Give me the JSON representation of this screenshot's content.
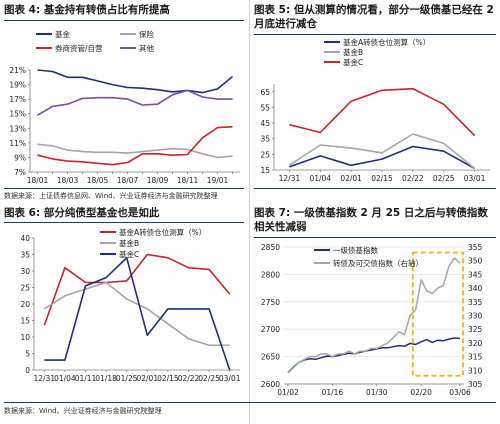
{
  "panels": [
    {
      "title": "图表 4:  基金持有转债占比有所提高",
      "source": "数据来源：上证债券信息网、Wind、兴业证券经济与金融研究院整理"
    },
    {
      "title": "图表 5:  但从测算的情况看，部分一级债基已经在 2 月底进行减仓",
      "source": ""
    },
    {
      "title": "图表 6:  部分纯债型基金也是如此",
      "source": "数据来源：Wind、兴业证券经济与金融研究院整理"
    },
    {
      "title": "图表 7:  一级债基指数 2 月 25 日之后与转债指数相关性减弱",
      "source": ""
    }
  ],
  "colors": {
    "navy": "#1f2f7a",
    "gray": "#a6a6a6",
    "red": "#c8262b",
    "purple": "#7b4fa0",
    "gold": "#f0b323",
    "rule": "#1f3d6e"
  },
  "chart_data": [
    {
      "type": "line",
      "x": [
        "18/01",
        "18/02",
        "18/03",
        "18/04",
        "18/05",
        "18/06",
        "18/07",
        "18/08",
        "18/09",
        "18/10",
        "18/11",
        "18/12",
        "19/01",
        "19/02"
      ],
      "xticks": [
        "18/01",
        "18/03",
        "18/05",
        "18/07",
        "18/09",
        "18/11",
        "19/01"
      ],
      "ylim": [
        7,
        21
      ],
      "yticks": [
        "7%",
        "9%",
        "11%",
        "13%",
        "15%",
        "17%",
        "19%",
        "21%"
      ],
      "series": [
        {
          "name": "基金",
          "color": "#1f2f7a",
          "values": [
            21.0,
            20.8,
            20.0,
            20.0,
            19.5,
            19.0,
            18.6,
            18.5,
            18.3,
            18.0,
            18.2,
            17.9,
            18.4,
            20.1
          ]
        },
        {
          "name": "保险",
          "color": "#a6a6a6",
          "values": [
            10.8,
            10.6,
            10.0,
            9.8,
            9.7,
            9.7,
            9.6,
            9.8,
            10.0,
            10.2,
            10.1,
            9.5,
            9.0,
            9.2
          ]
        },
        {
          "name": "券商资管/自营",
          "color": "#c8262b",
          "values": [
            9.3,
            8.8,
            8.5,
            8.4,
            8.2,
            8.0,
            8.3,
            9.5,
            9.5,
            9.3,
            9.4,
            11.7,
            13.1,
            13.2
          ]
        },
        {
          "name": "其他",
          "color": "#7b4fa0",
          "values": [
            14.8,
            16.0,
            16.3,
            17.1,
            17.2,
            17.2,
            17.0,
            16.2,
            16.3,
            17.6,
            18.2,
            17.3,
            17.0,
            17.0
          ]
        }
      ]
    },
    {
      "type": "line",
      "x": [
        "12/31",
        "01/04",
        "02/01",
        "02/15",
        "02/22",
        "02/25",
        "03/01"
      ],
      "ylim": [
        15,
        70
      ],
      "yticks": [
        15,
        25,
        35,
        45,
        55,
        65
      ],
      "series": [
        {
          "name": "基金A转债仓位测算（%）",
          "color": "#1f2f7a",
          "values": [
            17,
            24,
            18,
            22,
            30,
            27,
            16
          ]
        },
        {
          "name": "基金B",
          "color": "#a6a6a6",
          "values": [
            18,
            31,
            29,
            26,
            38,
            32,
            16
          ]
        },
        {
          "name": "基金C",
          "color": "#c8262b",
          "values": [
            44,
            39,
            59,
            66,
            67,
            57,
            37
          ]
        }
      ]
    },
    {
      "type": "line",
      "x": [
        "12/31",
        "01/04",
        "01/11",
        "01/18",
        "01/25",
        "02/01",
        "02/15",
        "02/22",
        "02/25",
        "03/01"
      ],
      "xticks": [
        "12/31",
        "01/04",
        "01/11",
        "01/18",
        "01/25",
        "02/01",
        "02/15",
        "02/22",
        "02/25",
        "03/01"
      ],
      "ylim": [
        0,
        40
      ],
      "yticks": [
        0,
        5,
        10,
        15,
        20,
        25,
        30,
        35,
        40
      ],
      "series": [
        {
          "name": "基金A转债仓位测算（%）",
          "color": "#c8262b",
          "values": [
            13.5,
            31.0,
            26.5,
            26.5,
            27.0,
            35.0,
            34.0,
            31.0,
            30.5,
            23.0
          ]
        },
        {
          "name": "基金B",
          "color": "#a6a6a6",
          "values": [
            18.5,
            22.5,
            24.5,
            26.5,
            21.5,
            18.5,
            14.0,
            9.5,
            7.5,
            7.5
          ]
        },
        {
          "name": "基金C",
          "color": "#1f2f7a",
          "values": [
            3.0,
            3.0,
            25.5,
            28.0,
            34.0,
            10.5,
            18.5,
            18.5,
            18.5,
            0.0
          ]
        }
      ]
    },
    {
      "type": "line",
      "x": [
        "01/02",
        "01/16",
        "01/30",
        "02/20",
        "03/06"
      ],
      "ylim": [
        2600,
        2850
      ],
      "yticks": [
        2600,
        2650,
        2700,
        2750,
        2800,
        2850
      ],
      "y2lim": [
        305,
        355
      ],
      "y2ticks": [
        305,
        310,
        315,
        320,
        325,
        330,
        335,
        340,
        345,
        350,
        355
      ],
      "highlight": {
        "from": "02/20",
        "to": "03/06"
      },
      "series": [
        {
          "name": "一级债基指数",
          "color": "#1f2f7a",
          "axis": "left",
          "points": [
            [
              0,
              2621
            ],
            [
              2,
              2631
            ],
            [
              4,
              2640
            ],
            [
              6,
              2644
            ],
            [
              8,
              2646
            ],
            [
              10,
              2645
            ],
            [
              12,
              2648
            ],
            [
              14,
              2651
            ],
            [
              16,
              2650
            ],
            [
              18,
              2652
            ],
            [
              20,
              2654
            ],
            [
              22,
              2656
            ],
            [
              24,
              2655
            ],
            [
              26,
              2658
            ],
            [
              28,
              2660
            ],
            [
              30,
              2662
            ],
            [
              32,
              2664
            ],
            [
              34,
              2666
            ],
            [
              36,
              2666
            ],
            [
              38,
              2668
            ],
            [
              40,
              2670
            ],
            [
              42,
              2669
            ],
            [
              44,
              2674
            ],
            [
              46,
              2672
            ],
            [
              48,
              2677
            ],
            [
              50,
              2681
            ],
            [
              52,
              2676
            ],
            [
              54,
              2680
            ],
            [
              56,
              2679
            ],
            [
              58,
              2682
            ],
            [
              60,
              2684
            ],
            [
              62,
              2683
            ]
          ]
        },
        {
          "name": "转债及可交债指数（右轴）",
          "color": "#a6a6a6",
          "axis": "right",
          "points": [
            [
              0,
              309
            ],
            [
              2,
              311
            ],
            [
              4,
              313
            ],
            [
              6,
              314
            ],
            [
              8,
              315
            ],
            [
              10,
              315
            ],
            [
              12,
              316
            ],
            [
              14,
              316
            ],
            [
              16,
              315
            ],
            [
              18,
              316
            ],
            [
              20,
              316
            ],
            [
              22,
              317
            ],
            [
              24,
              316
            ],
            [
              26,
              317
            ],
            [
              28,
              317
            ],
            [
              30,
              318
            ],
            [
              32,
              318
            ],
            [
              34,
              319
            ],
            [
              36,
              320
            ],
            [
              38,
              322
            ],
            [
              40,
              324
            ],
            [
              42,
              323
            ],
            [
              44,
              330
            ],
            [
              46,
              332
            ],
            [
              48,
              343
            ],
            [
              50,
              339
            ],
            [
              52,
              338
            ],
            [
              54,
              340
            ],
            [
              56,
              341
            ],
            [
              58,
              348
            ],
            [
              60,
              351
            ],
            [
              62,
              349
            ]
          ]
        }
      ]
    }
  ]
}
